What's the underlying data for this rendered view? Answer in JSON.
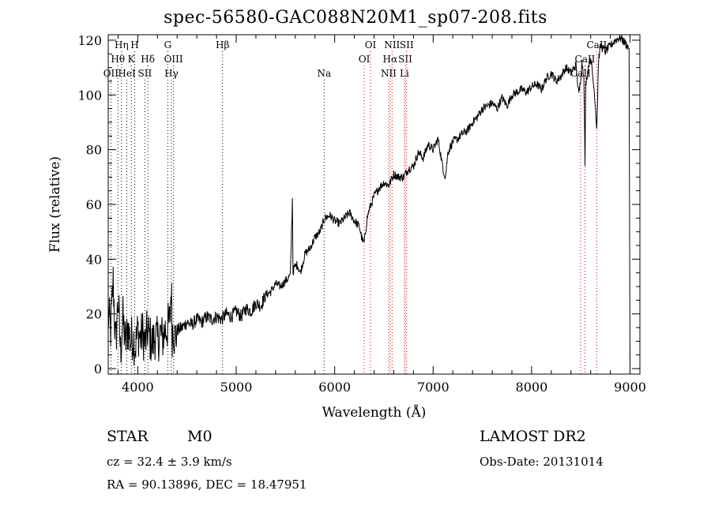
{
  "chart_data": {
    "type": "line",
    "title": "spec-56580-GAC088N20M1_sp07-208.fits",
    "xlabel": "Wavelength (Å)",
    "ylabel": "Flux (relative)",
    "xlim": [
      3700,
      9100
    ],
    "ylim": [
      -2,
      122
    ],
    "xticks": [
      4000,
      5000,
      6000,
      7000,
      8000,
      9000
    ],
    "yticks": [
      0,
      20,
      40,
      60,
      80,
      100,
      120
    ],
    "grid": false,
    "series": [
      {
        "x": [
          3700,
          3725,
          3750,
          3775,
          3800,
          3825,
          3850,
          3875,
          3900,
          3925,
          3950,
          3975,
          4000,
          4025,
          4050,
          4075,
          4100,
          4125,
          4150,
          4175,
          4200,
          4225,
          4250,
          4275,
          4300,
          4325,
          4340,
          4350,
          4360,
          4375,
          4400,
          4450,
          4500,
          4550,
          4600,
          4650,
          4700,
          4750,
          4800,
          4850,
          4900,
          4950,
          5000,
          5050,
          5100,
          5150,
          5200,
          5250,
          5300,
          5350,
          5400,
          5450,
          5500,
          5550,
          5570,
          5577,
          5590,
          5620,
          5650,
          5700,
          5750,
          5800,
          5850,
          5900,
          5950,
          6000,
          6050,
          6100,
          6150,
          6200,
          6250,
          6280,
          6300,
          6330,
          6350,
          6400,
          6450,
          6500,
          6550,
          6563,
          6600,
          6650,
          6700,
          6750,
          6800,
          6850,
          6900,
          6950,
          7000,
          7050,
          7100,
          7125,
          7150,
          7200,
          7250,
          7300,
          7350,
          7400,
          7450,
          7500,
          7550,
          7600,
          7650,
          7700,
          7750,
          7800,
          7850,
          7900,
          7950,
          8000,
          8050,
          8100,
          8150,
          8200,
          8250,
          8300,
          8350,
          8400,
          8450,
          8480,
          8498,
          8510,
          8530,
          8542,
          8550,
          8580,
          8600,
          8640,
          8662,
          8680,
          8700,
          8750,
          8800,
          8850,
          8900,
          8950,
          8990
        ],
        "y": [
          20,
          14,
          32,
          8,
          26,
          6,
          18,
          9,
          15,
          10,
          12,
          8,
          14,
          11,
          13,
          9,
          14,
          11,
          9,
          12,
          10,
          13,
          11,
          14,
          15,
          17,
          30,
          13,
          16,
          11,
          14,
          15,
          17,
          16,
          18,
          17,
          19,
          18,
          19,
          18,
          20,
          19,
          21,
          19,
          22,
          21,
          24,
          23,
          27,
          28,
          31,
          30,
          32,
          34,
          62,
          35,
          37,
          38,
          35,
          42,
          44,
          48,
          50,
          55,
          56,
          54,
          53,
          55,
          57,
          54,
          52,
          47,
          46,
          55,
          58,
          63,
          66,
          68,
          67,
          68,
          71,
          70,
          70,
          73,
          74,
          79,
          77,
          82,
          80,
          84,
          73,
          70,
          79,
          83,
          84,
          86,
          87,
          90,
          92,
          95,
          96,
          97,
          95,
          99,
          96,
          100,
          101,
          102,
          101,
          103,
          104,
          102,
          106,
          108,
          105,
          107,
          110,
          108,
          111,
          100,
          106,
          112,
          108,
          75,
          104,
          111,
          114,
          100,
          88,
          113,
          118,
          116,
          118,
          120,
          121,
          119,
          117
        ]
      }
    ],
    "line_labels": [
      {
        "id": "oii",
        "text": "OII",
        "x": 3727,
        "row": 3,
        "color": "#000000"
      },
      {
        "id": "h-theta",
        "text": "Hθ",
        "x": 3798,
        "row": 2,
        "color": "#000000"
      },
      {
        "id": "h-eta",
        "text": "Hη",
        "x": 3835,
        "row": 1,
        "color": "#000000"
      },
      {
        "id": "hei",
        "text": "HeI",
        "x": 3889,
        "row": 3,
        "color": "#000000"
      },
      {
        "id": "ca-k",
        "text": "K",
        "x": 3934,
        "row": 2,
        "color": "#000000"
      },
      {
        "id": "ca-h",
        "text": "H",
        "x": 3969,
        "row": 1,
        "color": "#000000"
      },
      {
        "id": "sii-4072",
        "text": "SII",
        "x": 4072,
        "row": 3,
        "color": "#000000"
      },
      {
        "id": "h-delta",
        "text": "Hδ",
        "x": 4102,
        "row": 2,
        "color": "#000000"
      },
      {
        "id": "g-band",
        "text": "G",
        "x": 4305,
        "row": 1,
        "color": "#000000"
      },
      {
        "id": "h-gamma",
        "text": "Hγ",
        "x": 4341,
        "row": 3,
        "color": "#000000"
      },
      {
        "id": "oiii-4363",
        "text": "OIII",
        "x": 4363,
        "row": 2,
        "color": "#000000"
      },
      {
        "id": "h-beta",
        "text": "Hβ",
        "x": 4861,
        "row": 1,
        "color": "#000000"
      },
      {
        "id": "na",
        "text": "Na",
        "x": 5893,
        "row": 3,
        "color": "#000000"
      },
      {
        "id": "oi-6300",
        "text": "OI",
        "x": 6300,
        "row": 2,
        "color": "#cc0000"
      },
      {
        "id": "oi-6364",
        "text": "OI",
        "x": 6364,
        "row": 1,
        "color": "#cc0000"
      },
      {
        "id": "nii-6548",
        "text": "NII",
        "x": 6548,
        "row": 3,
        "color": "#cc0000"
      },
      {
        "id": "h-alpha",
        "text": "Hα",
        "x": 6563,
        "row": 2,
        "color": "#cc0000"
      },
      {
        "id": "nii-6583",
        "text": "NII",
        "x": 6583,
        "row": 1,
        "color": "#cc0000"
      },
      {
        "id": "li",
        "text": "Li",
        "x": 6708,
        "row": 3,
        "color": "#cc0000"
      },
      {
        "id": "sii-6717",
        "text": "SII",
        "x": 6717,
        "row": 2,
        "color": "#cc0000"
      },
      {
        "id": "sii-6731",
        "text": "SII",
        "x": 6731,
        "row": 1,
        "color": "#cc0000"
      },
      {
        "id": "caii-8498",
        "text": "CaII",
        "x": 8498,
        "row": 3,
        "color": "#cc0000"
      },
      {
        "id": "caii-8542",
        "text": "CaII",
        "x": 8542,
        "row": 2,
        "color": "#cc0000"
      },
      {
        "id": "caii-8662",
        "text": "CaII",
        "x": 8662,
        "row": 1,
        "color": "#cc0000"
      }
    ]
  },
  "info": {
    "object_class": "STAR",
    "subclass": "M0",
    "survey": "LAMOST DR2",
    "redshift": "cz = 32.4 ± 3.9 km/s",
    "obs_date": "Obs-Date: 20131014",
    "coords": "RA =  90.13896, DEC =  18.47951"
  }
}
